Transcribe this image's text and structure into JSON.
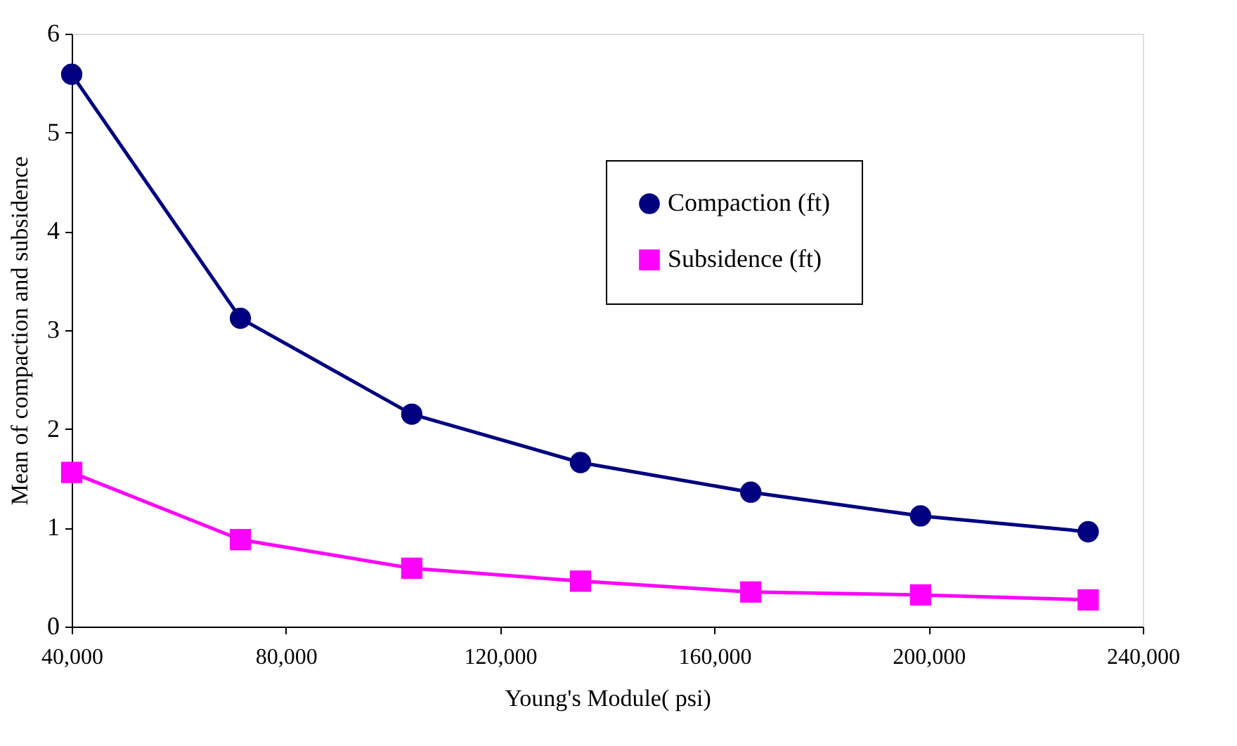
{
  "chart_data": {
    "type": "line",
    "xlabel": "Young's Module( psi)",
    "ylabel": "Mean of compaction and subsidence",
    "x": [
      40000,
      71500,
      103500,
      135000,
      166800,
      198500,
      229800
    ],
    "series": [
      {
        "name": "Compaction (ft)",
        "color": "#000080",
        "marker": "circle",
        "values": [
          5.59,
          3.12,
          2.15,
          1.66,
          1.36,
          1.12,
          0.96
        ]
      },
      {
        "name": "Subsidence (ft)",
        "color": "#ff00ff",
        "marker": "square",
        "values": [
          1.56,
          0.88,
          0.59,
          0.46,
          0.35,
          0.32,
          0.27
        ]
      }
    ],
    "xlim": [
      40000,
      240000
    ],
    "xticks": [
      {
        "value": 40000,
        "label": "40,000"
      },
      {
        "value": 80000,
        "label": "80,000"
      },
      {
        "value": 120000,
        "label": "120,000"
      },
      {
        "value": 160000,
        "label": "160,000"
      },
      {
        "value": 200000,
        "label": "200,000"
      },
      {
        "value": 240000,
        "label": "240,000"
      }
    ],
    "ylim": [
      0,
      6
    ],
    "yticks": [
      0,
      1,
      2,
      3,
      4,
      5,
      6
    ],
    "grid": false,
    "legend": "top right",
    "line_style": "solid"
  }
}
